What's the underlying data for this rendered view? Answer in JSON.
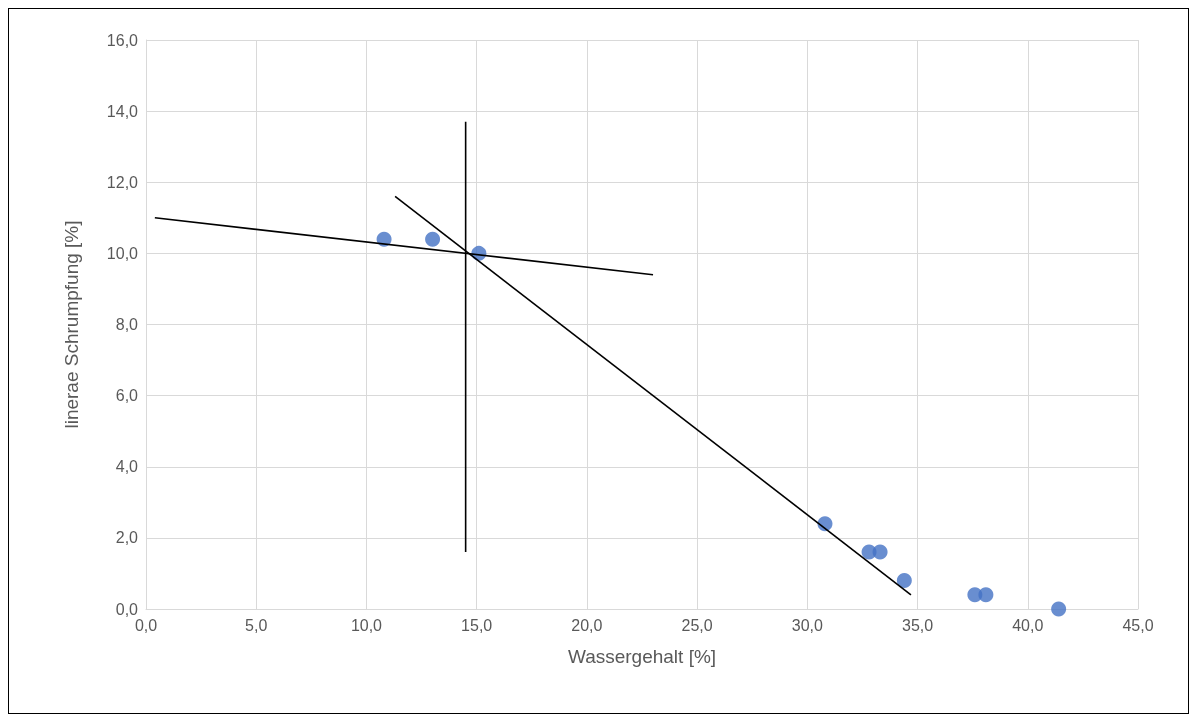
{
  "chart_data": {
    "type": "scatter",
    "xlabel": "Wassergehalt [%]",
    "ylabel": "linerae Schrumpfung [%]",
    "xlim": [
      0,
      45
    ],
    "ylim": [
      0,
      16
    ],
    "xticks": [
      {
        "value": 0,
        "label": "0,0"
      },
      {
        "value": 5,
        "label": "5,0"
      },
      {
        "value": 10,
        "label": "10,0"
      },
      {
        "value": 15,
        "label": "15,0"
      },
      {
        "value": 20,
        "label": "20,0"
      },
      {
        "value": 25,
        "label": "25,0"
      },
      {
        "value": 30,
        "label": "30,0"
      },
      {
        "value": 35,
        "label": "35,0"
      },
      {
        "value": 40,
        "label": "40,0"
      },
      {
        "value": 45,
        "label": "45,0"
      }
    ],
    "yticks": [
      {
        "value": 0,
        "label": "0,0"
      },
      {
        "value": 2,
        "label": "2,0"
      },
      {
        "value": 4,
        "label": "4,0"
      },
      {
        "value": 6,
        "label": "6,0"
      },
      {
        "value": 8,
        "label": "8,0"
      },
      {
        "value": 10,
        "label": "10,0"
      },
      {
        "value": 12,
        "label": "12,0"
      },
      {
        "value": 14,
        "label": "14,0"
      },
      {
        "value": 16,
        "label": "16,0"
      }
    ],
    "grid": true,
    "series": [
      {
        "marker": "circle",
        "color": "#4472c4",
        "x": [
          10.8,
          13.0,
          15.1,
          30.8,
          32.8,
          33.3,
          34.4,
          37.6,
          38.1,
          41.4
        ],
        "values": [
          10.4,
          10.4,
          10.0,
          2.4,
          1.6,
          1.6,
          0.8,
          0.4,
          0.4,
          0.0
        ]
      },
      {
        "type": "line",
        "marker": "none",
        "color": "#000000",
        "x": [
          0.4,
          23.0
        ],
        "values": [
          11.0,
          9.4
        ]
      },
      {
        "type": "line",
        "marker": "none",
        "color": "#000000",
        "x": [
          11.3,
          34.7
        ],
        "values": [
          11.6,
          0.4
        ]
      },
      {
        "type": "line",
        "marker": "none",
        "color": "#000000",
        "x": [
          14.5,
          14.5
        ],
        "values": [
          13.7,
          1.6
        ]
      }
    ]
  }
}
